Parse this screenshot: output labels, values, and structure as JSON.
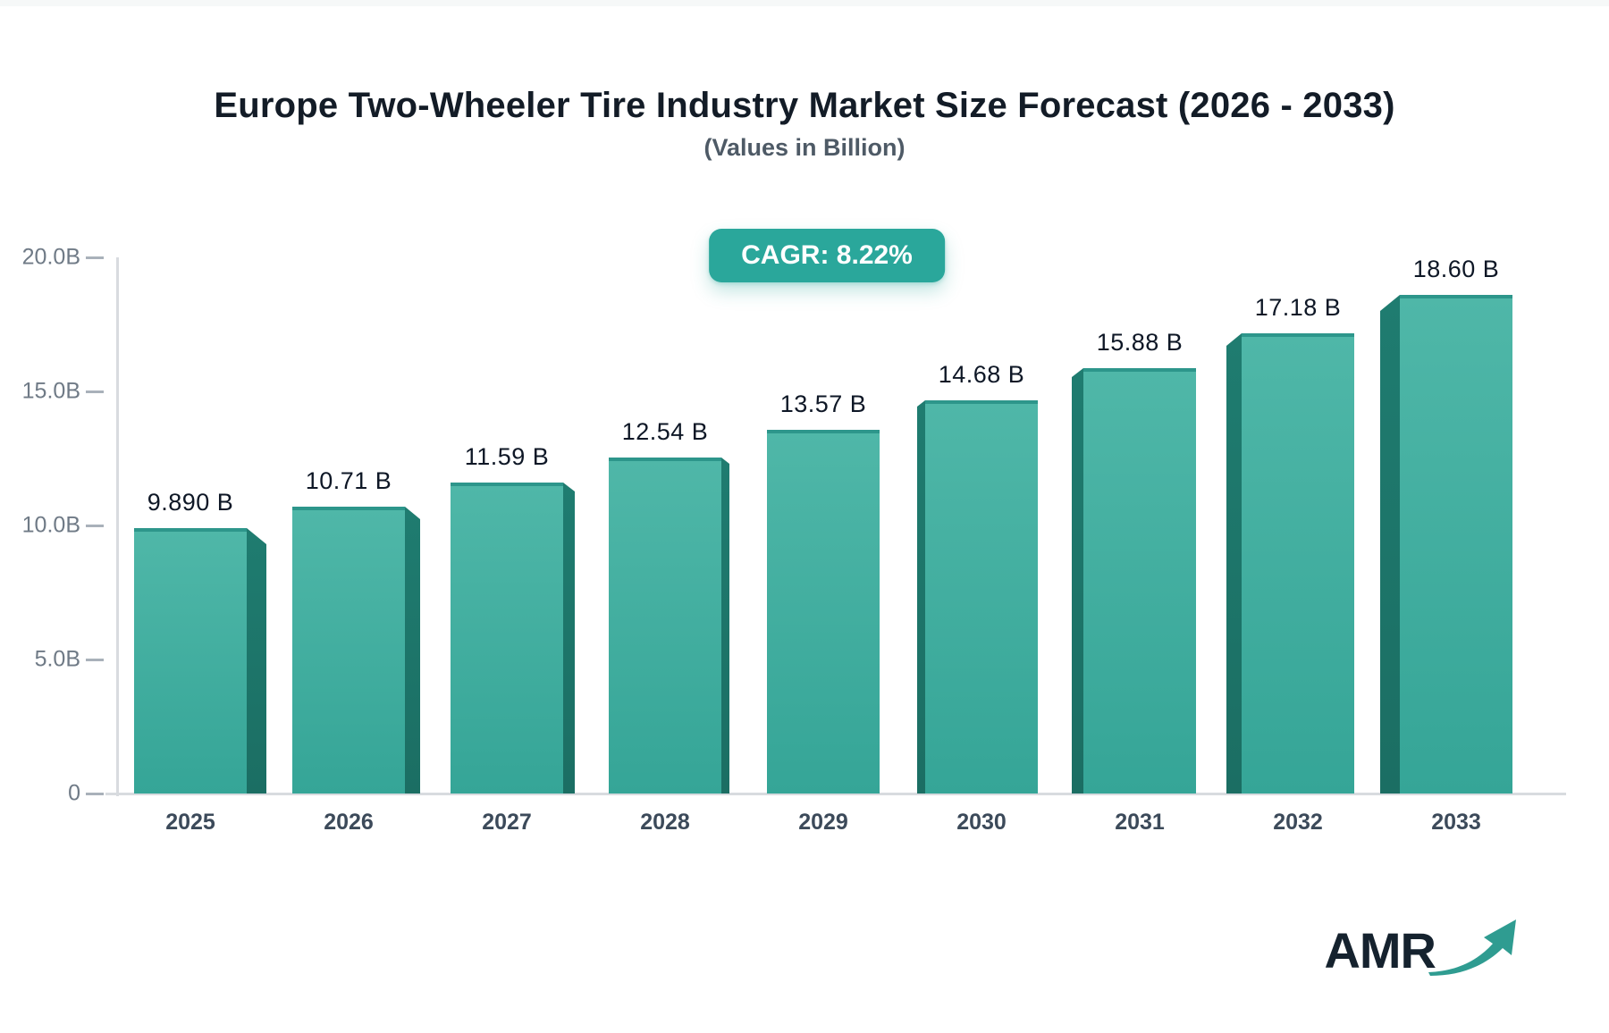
{
  "page": {
    "background": "#ffffff"
  },
  "header": {
    "title": "Europe Two-Wheeler Tire Industry Market Size Forecast (2026 - 2033)",
    "subtitle": "(Values in Billion)"
  },
  "badge": {
    "label": "CAGR: 8.22%",
    "background": "#2aa79b",
    "text_color": "#ffffff"
  },
  "chart_data": {
    "type": "bar",
    "title": "Europe Two-Wheeler Tire Industry Market Size Forecast (2026 - 2033)",
    "subtitle": "(Values in Billion)",
    "xlabel": "",
    "ylabel": "",
    "categories": [
      "2025",
      "2026",
      "2027",
      "2028",
      "2029",
      "2030",
      "2031",
      "2032",
      "2033"
    ],
    "values": [
      9.89,
      10.71,
      11.59,
      12.54,
      13.57,
      14.68,
      15.88,
      17.18,
      18.6
    ],
    "value_labels": [
      "9.890 B",
      "10.71 B",
      "11.59 B",
      "12.54 B",
      "13.57 B",
      "14.68 B",
      "15.88 B",
      "17.18 B",
      "18.60 B"
    ],
    "ylim": [
      0,
      20
    ],
    "yticks": [
      {
        "value": 0,
        "label": "0"
      },
      {
        "value": 5,
        "label": "5.0B"
      },
      {
        "value": 10,
        "label": "10.0B"
      },
      {
        "value": 15,
        "label": "15.0B"
      },
      {
        "value": 20,
        "label": "20.0B"
      }
    ],
    "grid": false,
    "legend": "none",
    "style": "3d-perspective-bars",
    "colors": {
      "bar_gradient_top": "#4fb7a8",
      "bar_gradient_bottom": "#35a597",
      "bar_top_edge": "#2d968b",
      "bar_side_face": "#1f7c70",
      "bar_side_face_dark": "#1b6e63",
      "axis_line": "#d8dbdf",
      "tick_dash": "#a9b1ba",
      "tick_label": "#6f7a86",
      "category_label": "#3c4a5a",
      "value_label": "#0e1726"
    }
  },
  "logo": {
    "text": "AMR",
    "icon": "growth-arrow-icon",
    "text_color": "#15222e",
    "arrow_color": "#2f9c91"
  }
}
